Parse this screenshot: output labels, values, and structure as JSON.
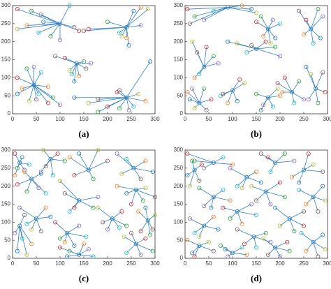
{
  "chart_data": [
    {
      "type": "cluster",
      "caption": "(a)",
      "xlim": [
        0,
        300
      ],
      "ylim": [
        0,
        300
      ],
      "xticks": [
        0,
        50,
        100,
        150,
        200,
        250,
        300
      ],
      "yticks": [
        0,
        50,
        100,
        150,
        200,
        250,
        300
      ],
      "line_color": "#2f7fc1",
      "marker_colors": [
        "#d62728",
        "#2ca02c",
        "#9467bd",
        "#17becf",
        "#ff7f0e",
        "#1f77b4",
        "#bcbd22",
        "#8c564b"
      ],
      "clusters": [
        {
          "center": [
            100,
            250
          ],
          "x": [
            10,
            40,
            60,
            120,
            30,
            65,
            10,
            130,
            140,
            80,
            100,
            55
          ],
          "y": [
            290,
            285,
            275,
            300,
            245,
            255,
            235,
            240,
            230,
            215,
            205,
            225
          ]
        },
        {
          "center": [
            240,
            240
          ],
          "x": [
            270,
            255,
            285,
            150,
            160,
            200,
            270,
            225,
            240,
            245,
            230
          ],
          "y": [
            295,
            285,
            290,
            230,
            235,
            255,
            245,
            225,
            210,
            190,
            215
          ]
        },
        {
          "center": [
            135,
            140
          ],
          "x": [
            90,
            110,
            150,
            165,
            125,
            140,
            130,
            120,
            155
          ],
          "y": [
            160,
            155,
            145,
            140,
            110,
            105,
            90,
            120,
            125
          ]
        },
        {
          "center": [
            45,
            80
          ],
          "x": [
            10,
            30,
            45,
            60,
            20,
            10,
            35,
            50,
            75,
            85,
            100,
            55,
            75
          ],
          "y": [
            100,
            125,
            130,
            115,
            70,
            55,
            35,
            40,
            30,
            45,
            25,
            55,
            75
          ]
        },
        {
          "center": [
            240,
            45
          ],
          "x": [
            130,
            160,
            180,
            200,
            225,
            245,
            255,
            280,
            290,
            265,
            225,
            220,
            180
          ],
          "y": [
            45,
            30,
            40,
            20,
            15,
            10,
            20,
            35,
            145,
            55,
            65,
            60,
            5
          ]
        }
      ]
    },
    {
      "type": "cluster",
      "caption": "(b)",
      "xlim": [
        0,
        300
      ],
      "ylim": [
        0,
        300
      ],
      "xticks": [
        0,
        50,
        100,
        150,
        200,
        250,
        300
      ],
      "yticks": [
        0,
        50,
        100,
        150,
        200,
        250,
        300
      ],
      "line_color": "#2f7fc1",
      "marker_colors": [
        "#d62728",
        "#2ca02c",
        "#9467bd",
        "#17becf",
        "#ff7f0e",
        "#1f77b4",
        "#bcbd22",
        "#8c564b"
      ],
      "clusters": [
        {
          "center": [
            90,
            295
          ],
          "x": [
            5,
            20,
            40,
            60,
            120,
            140,
            150,
            10
          ],
          "y": [
            290,
            270,
            260,
            285,
            300,
            290,
            280,
            250
          ]
        },
        {
          "center": [
            175,
            235
          ],
          "x": [
            150,
            160,
            185,
            200,
            165,
            190,
            180
          ],
          "y": [
            255,
            270,
            260,
            250,
            215,
            210,
            195
          ]
        },
        {
          "center": [
            265,
            235
          ],
          "x": [
            240,
            255,
            280,
            290,
            270,
            250,
            285
          ],
          "y": [
            285,
            260,
            290,
            270,
            195,
            220,
            210
          ]
        },
        {
          "center": [
            40,
            130
          ],
          "x": [
            15,
            25,
            45,
            60,
            70,
            30,
            20
          ],
          "y": [
            200,
            170,
            185,
            160,
            140,
            110,
            100
          ]
        },
        {
          "center": [
            150,
            180
          ],
          "x": [
            90,
            110,
            140,
            170,
            190,
            200,
            130
          ],
          "y": [
            200,
            195,
            190,
            200,
            185,
            160,
            170
          ]
        },
        {
          "center": [
            30,
            30
          ],
          "x": [
            5,
            10,
            20,
            45,
            55,
            40,
            15
          ],
          "y": [
            60,
            40,
            15,
            10,
            40,
            70,
            70
          ]
        },
        {
          "center": [
            100,
            65
          ],
          "x": [
            75,
            90,
            110,
            125,
            80,
            115
          ],
          "y": [
            50,
            30,
            35,
            85,
            55,
            95
          ]
        },
        {
          "center": [
            175,
            45
          ],
          "x": [
            150,
            165,
            185,
            200,
            160,
            195
          ],
          "y": [
            55,
            25,
            20,
            50,
            10,
            70
          ]
        },
        {
          "center": [
            225,
            60
          ],
          "x": [
            195,
            210,
            240,
            250,
            230,
            205
          ],
          "y": [
            85,
            100,
            90,
            40,
            30,
            60
          ]
        },
        {
          "center": [
            275,
            70
          ],
          "x": [
            255,
            265,
            290,
            295,
            280,
            260
          ],
          "y": [
            130,
            110,
            115,
            60,
            30,
            40
          ]
        }
      ]
    },
    {
      "type": "cluster",
      "caption": "(c)",
      "xlim": [
        0,
        300
      ],
      "ylim": [
        0,
        300
      ],
      "xticks": [
        0,
        50,
        100,
        150,
        200,
        250,
        300
      ],
      "yticks": [
        0,
        50,
        100,
        150,
        200,
        250,
        300
      ],
      "line_color": "#2f7fc1",
      "marker_colors": [
        "#d62728",
        "#2ca02c",
        "#9467bd",
        "#17becf",
        "#ff7f0e",
        "#1f77b4",
        "#bcbd22",
        "#8c564b"
      ],
      "clusters": [
        {
          "center": [
            15,
            265
          ],
          "x": [
            5,
            10,
            25,
            35,
            5,
            20
          ],
          "y": [
            290,
            250,
            245,
            260,
            230,
            280
          ]
        },
        {
          "center": [
            80,
            275
          ],
          "x": [
            65,
            70,
            95,
            110,
            60,
            85
          ],
          "y": [
            300,
            255,
            290,
            270,
            240,
            230
          ]
        },
        {
          "center": [
            160,
            245
          ],
          "x": [
            120,
            140,
            180,
            200,
            130,
            170
          ],
          "y": [
            280,
            290,
            300,
            270,
            230,
            220
          ]
        },
        {
          "center": [
            255,
            250
          ],
          "x": [
            220,
            240,
            280,
            295,
            230,
            270
          ],
          "y": [
            290,
            275,
            270,
            240,
            235,
            220
          ]
        },
        {
          "center": [
            40,
            220
          ],
          "x": [
            10,
            30,
            55,
            70,
            25,
            60
          ],
          "y": [
            205,
            185,
            195,
            180,
            240,
            235
          ]
        },
        {
          "center": [
            140,
            160
          ],
          "x": [
            100,
            110,
            130,
            170,
            180,
            120
          ],
          "y": [
            215,
            180,
            140,
            140,
            170,
            130
          ]
        },
        {
          "center": [
            260,
            190
          ],
          "x": [
            220,
            240,
            280,
            300,
            250,
            275
          ],
          "y": [
            200,
            180,
            195,
            170,
            150,
            160
          ]
        },
        {
          "center": [
            50,
            110
          ],
          "x": [
            15,
            30,
            70,
            80,
            40,
            60
          ],
          "y": [
            140,
            95,
            140,
            115,
            80,
            75
          ]
        },
        {
          "center": [
            115,
            70
          ],
          "x": [
            90,
            100,
            140,
            155,
            110,
            130
          ],
          "y": [
            100,
            55,
            90,
            60,
            45,
            35
          ]
        },
        {
          "center": [
            210,
            110
          ],
          "x": [
            180,
            190,
            230,
            240,
            200,
            225
          ],
          "y": [
            140,
            100,
            130,
            90,
            80,
            85
          ]
        },
        {
          "center": [
            285,
            105
          ],
          "x": [
            265,
            280,
            300,
            295,
            270,
            290
          ],
          "y": [
            130,
            140,
            120,
            80,
            75,
            65
          ]
        },
        {
          "center": [
            15,
            90
          ],
          "x": [
            5,
            20,
            40,
            10,
            30,
            25
          ],
          "y": [
            70,
            55,
            40,
            20,
            10,
            120
          ]
        },
        {
          "center": [
            140,
            10
          ],
          "x": [
            100,
            120,
            160,
            170,
            150,
            115
          ],
          "y": [
            30,
            20,
            25,
            5,
            40,
            5
          ]
        },
        {
          "center": [
            260,
            40
          ],
          "x": [
            235,
            250,
            280,
            295,
            270,
            240
          ],
          "y": [
            60,
            70,
            55,
            20,
            10,
            15
          ]
        }
      ]
    },
    {
      "type": "cluster",
      "caption": "(d)",
      "xlim": [
        0,
        300
      ],
      "ylim": [
        0,
        300
      ],
      "xticks": [
        0,
        50,
        100,
        150,
        200,
        250,
        300
      ],
      "yticks": [
        0,
        50,
        100,
        150,
        200,
        250,
        300
      ],
      "line_color": "#2f7fc1",
      "marker_colors": [
        "#d62728",
        "#2ca02c",
        "#9467bd",
        "#17becf",
        "#ff7f0e",
        "#1f77b4",
        "#bcbd22",
        "#8c564b"
      ],
      "clusters": [
        {
          "center": [
            60,
            265
          ],
          "x": [
            5,
            20,
            40,
            80,
            100
          ],
          "y": [
            290,
            270,
            250,
            280,
            260
          ]
        },
        {
          "center": [
            20,
            245
          ],
          "x": [
            5,
            10,
            30,
            35,
            15
          ],
          "y": [
            230,
            200,
            215,
            260,
            270
          ]
        },
        {
          "center": [
            130,
            225
          ],
          "x": [
            95,
            110,
            150,
            160,
            120
          ],
          "y": [
            250,
            200,
            240,
            210,
            195
          ]
        },
        {
          "center": [
            190,
            265
          ],
          "x": [
            160,
            175,
            210,
            230,
            180
          ],
          "y": [
            290,
            280,
            290,
            270,
            240
          ]
        },
        {
          "center": [
            250,
            245
          ],
          "x": [
            225,
            240,
            270,
            290,
            260
          ],
          "y": [
            225,
            210,
            260,
            240,
            290
          ]
        },
        {
          "center": [
            60,
            170
          ],
          "x": [
            30,
            40,
            80,
            95,
            55
          ],
          "y": [
            195,
            145,
            190,
            160,
            140
          ]
        },
        {
          "center": [
            170,
            185
          ],
          "x": [
            140,
            150,
            200,
            210,
            180
          ],
          "y": [
            200,
            160,
            210,
            170,
            150
          ]
        },
        {
          "center": [
            270,
            170
          ],
          "x": [
            240,
            255,
            290,
            295,
            280
          ],
          "y": [
            190,
            150,
            200,
            160,
            130
          ]
        },
        {
          "center": [
            110,
            130
          ],
          "x": [
            80,
            95,
            140,
            150,
            120
          ],
          "y": [
            140,
            110,
            150,
            120,
            95
          ]
        },
        {
          "center": [
            220,
            110
          ],
          "x": [
            190,
            200,
            250,
            250,
            230
          ],
          "y": [
            140,
            90,
            130,
            90,
            75
          ]
        },
        {
          "center": [
            40,
            90
          ],
          "x": [
            10,
            20,
            60,
            70,
            30
          ],
          "y": [
            110,
            70,
            115,
            80,
            60
          ]
        },
        {
          "center": [
            145,
            60
          ],
          "x": [
            110,
            125,
            170,
            180,
            150
          ],
          "y": [
            80,
            40,
            70,
            45,
            30
          ]
        },
        {
          "center": [
            30,
            35
          ],
          "x": [
            5,
            15,
            50,
            60,
            20
          ],
          "y": [
            50,
            15,
            45,
            20,
            5
          ]
        },
        {
          "center": [
            100,
            15
          ],
          "x": [
            75,
            90,
            120,
            130,
            85
          ],
          "y": [
            35,
            5,
            30,
            10,
            25
          ]
        },
        {
          "center": [
            190,
            30
          ],
          "x": [
            165,
            175,
            215,
            220,
            200
          ],
          "y": [
            55,
            10,
            45,
            20,
            5
          ]
        },
        {
          "center": [
            270,
            45
          ],
          "x": [
            245,
            255,
            290,
            295,
            280
          ],
          "y": [
            70,
            20,
            65,
            25,
            5
          ]
        }
      ]
    }
  ]
}
